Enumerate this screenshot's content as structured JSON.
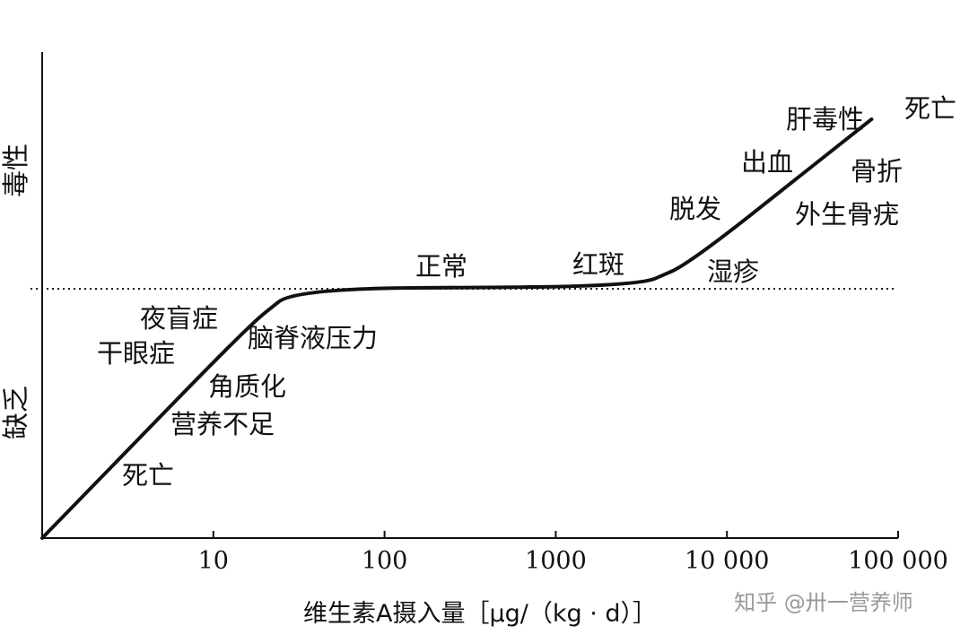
{
  "chart_data": {
    "type": "line",
    "x_scale": "log",
    "xlim": [
      1,
      100000
    ],
    "xticks": [
      10,
      100,
      1000,
      10000,
      100000
    ],
    "xtick_labels": [
      "10",
      "100",
      "1000",
      "10 000",
      "100 000"
    ],
    "xlabel": "维生素A摄入量［μg/（kg · d）］",
    "y_categories": {
      "top": "毒性",
      "bottom": "缺乏"
    },
    "baseline_style": "dotted",
    "series": [
      {
        "points": [
          [
            1,
            -1.0
          ],
          [
            16,
            -0.15
          ],
          [
            30,
            0.0
          ],
          [
            3000,
            0.01
          ],
          [
            6000,
            0.1
          ],
          [
            70000,
            0.68
          ]
        ]
      }
    ],
    "annotations": [
      {
        "id": "night-blindness",
        "text": "夜盲症"
      },
      {
        "id": "dry-eye",
        "text": "干眼症"
      },
      {
        "id": "keratinization",
        "text": "角质化"
      },
      {
        "id": "malnutrition",
        "text": "营养不足"
      },
      {
        "id": "death-deficiency",
        "text": "死亡"
      },
      {
        "id": "csf-pressure",
        "text": "脑脊液压力"
      },
      {
        "id": "normal",
        "text": "正常"
      },
      {
        "id": "erythema",
        "text": "红斑"
      },
      {
        "id": "hair-loss",
        "text": "脱发"
      },
      {
        "id": "eczema",
        "text": "湿疹"
      },
      {
        "id": "bleeding",
        "text": "出血"
      },
      {
        "id": "hepatotoxicity",
        "text": "肝毒性"
      },
      {
        "id": "fracture",
        "text": "骨折"
      },
      {
        "id": "exostosis",
        "text": "外生骨疣"
      },
      {
        "id": "death-toxicity",
        "text": "死亡"
      }
    ]
  },
  "watermark": "知乎 @卅一营养师"
}
